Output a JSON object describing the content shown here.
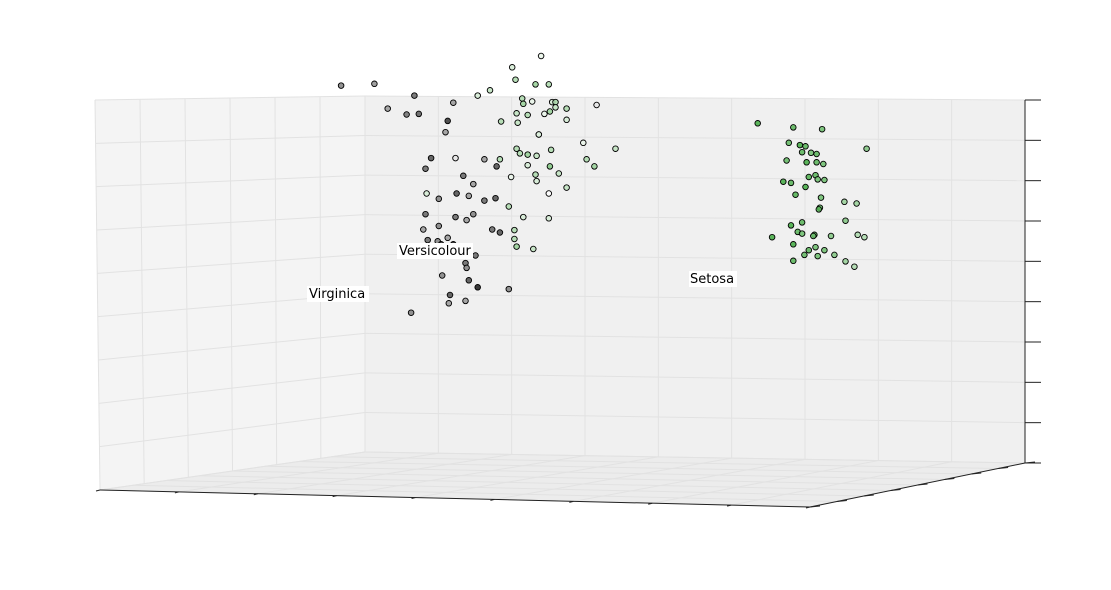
{
  "chart_data": {
    "type": "scatter",
    "projection": "3d",
    "title": "",
    "xlabel": "",
    "ylabel": "",
    "zlabel": "",
    "tick_labels_shown": false,
    "grid": true,
    "pane_color": "#f2f2f2",
    "annotations": [
      {
        "text": "Setosa"
      },
      {
        "text": "Versicolour"
      },
      {
        "text": "Virginica"
      }
    ],
    "point_color_map": {
      "low": "#000000",
      "mid": "#ffffff",
      "high": "#2ca02c"
    },
    "point_edge_color": "#000000",
    "points_note": "Values are read off the projected view; axes carry no labels, so values are normalized 0-1 screen-space readings (u = horizontal, v = vertical) with color level c.",
    "series": [
      {
        "points": [
          {
            "u": 0.307,
            "v": 0.855,
            "c": 0.25
          },
          {
            "u": 0.337,
            "v": 0.858,
            "c": 0.28
          },
          {
            "u": 0.373,
            "v": 0.838,
            "c": 0.2
          },
          {
            "u": 0.349,
            "v": 0.816,
            "c": 0.3
          },
          {
            "u": 0.366,
            "v": 0.806,
            "c": 0.22
          },
          {
            "u": 0.377,
            "v": 0.807,
            "c": 0.18
          },
          {
            "u": 0.408,
            "v": 0.826,
            "c": 0.3
          },
          {
            "u": 0.403,
            "v": 0.795,
            "c": 0.1
          },
          {
            "u": 0.401,
            "v": 0.776,
            "c": 0.3
          },
          {
            "u": 0.388,
            "v": 0.732,
            "c": 0.15
          },
          {
            "u": 0.41,
            "v": 0.732,
            "c": 0.45
          },
          {
            "u": 0.383,
            "v": 0.714,
            "c": 0.2
          },
          {
            "u": 0.436,
            "v": 0.73,
            "c": 0.3
          },
          {
            "u": 0.447,
            "v": 0.718,
            "c": 0.15
          },
          {
            "u": 0.417,
            "v": 0.702,
            "c": 0.2
          },
          {
            "u": 0.426,
            "v": 0.688,
            "c": 0.3
          },
          {
            "u": 0.384,
            "v": 0.672,
            "c": 0.6
          },
          {
            "u": 0.395,
            "v": 0.663,
            "c": 0.25
          },
          {
            "u": 0.411,
            "v": 0.672,
            "c": 0.15
          },
          {
            "u": 0.422,
            "v": 0.668,
            "c": 0.3
          },
          {
            "u": 0.436,
            "v": 0.66,
            "c": 0.2
          },
          {
            "u": 0.446,
            "v": 0.664,
            "c": 0.15
          },
          {
            "u": 0.383,
            "v": 0.637,
            "c": 0.2
          },
          {
            "u": 0.41,
            "v": 0.632,
            "c": 0.2
          },
          {
            "u": 0.42,
            "v": 0.627,
            "c": 0.3
          },
          {
            "u": 0.426,
            "v": 0.637,
            "c": 0.25
          },
          {
            "u": 0.395,
            "v": 0.617,
            "c": 0.25
          },
          {
            "u": 0.381,
            "v": 0.611,
            "c": 0.3
          },
          {
            "u": 0.443,
            "v": 0.611,
            "c": 0.2
          },
          {
            "u": 0.45,
            "v": 0.606,
            "c": 0.15
          },
          {
            "u": 0.403,
            "v": 0.597,
            "c": 0.3
          },
          {
            "u": 0.385,
            "v": 0.593,
            "c": 0.2
          },
          {
            "u": 0.394,
            "v": 0.591,
            "c": 0.25
          },
          {
            "u": 0.408,
            "v": 0.586,
            "c": 0.05
          },
          {
            "u": 0.397,
            "v": 0.586,
            "c": 0.1
          },
          {
            "u": 0.428,
            "v": 0.567,
            "c": 0.2
          },
          {
            "u": 0.393,
            "v": 0.567,
            "c": 0.3
          },
          {
            "u": 0.419,
            "v": 0.554,
            "c": 0.2
          },
          {
            "u": 0.42,
            "v": 0.546,
            "c": 0.25
          },
          {
            "u": 0.422,
            "v": 0.525,
            "c": 0.15
          },
          {
            "u": 0.43,
            "v": 0.513,
            "c": 0.05
          },
          {
            "u": 0.398,
            "v": 0.533,
            "c": 0.25
          },
          {
            "u": 0.419,
            "v": 0.49,
            "c": 0.3
          },
          {
            "u": 0.37,
            "v": 0.47,
            "c": 0.25
          },
          {
            "u": 0.405,
            "v": 0.5,
            "c": 0.15
          },
          {
            "u": 0.458,
            "v": 0.51,
            "c": 0.25
          },
          {
            "u": 0.404,
            "v": 0.486,
            "c": 0.3
          }
        ]
      },
      {
        "points": [
          {
            "u": 0.487,
            "v": 0.905,
            "c": 0.55
          },
          {
            "u": 0.461,
            "v": 0.886,
            "c": 0.6
          },
          {
            "u": 0.464,
            "v": 0.865,
            "c": 0.7
          },
          {
            "u": 0.441,
            "v": 0.847,
            "c": 0.65
          },
          {
            "u": 0.482,
            "v": 0.857,
            "c": 0.75
          },
          {
            "u": 0.494,
            "v": 0.857,
            "c": 0.7
          },
          {
            "u": 0.43,
            "v": 0.838,
            "c": 0.6
          },
          {
            "u": 0.47,
            "v": 0.833,
            "c": 0.7
          },
          {
            "u": 0.471,
            "v": 0.824,
            "c": 0.75
          },
          {
            "u": 0.479,
            "v": 0.828,
            "c": 0.55
          },
          {
            "u": 0.497,
            "v": 0.827,
            "c": 0.6
          },
          {
            "u": 0.5,
            "v": 0.827,
            "c": 0.7
          },
          {
            "u": 0.5,
            "v": 0.818,
            "c": 0.65
          },
          {
            "u": 0.51,
            "v": 0.816,
            "c": 0.7
          },
          {
            "u": 0.495,
            "v": 0.811,
            "c": 0.75
          },
          {
            "u": 0.49,
            "v": 0.807,
            "c": 0.55
          },
          {
            "u": 0.537,
            "v": 0.822,
            "c": 0.45
          },
          {
            "u": 0.465,
            "v": 0.808,
            "c": 0.65
          },
          {
            "u": 0.475,
            "v": 0.805,
            "c": 0.7
          },
          {
            "u": 0.51,
            "v": 0.797,
            "c": 0.6
          },
          {
            "u": 0.451,
            "v": 0.794,
            "c": 0.7
          },
          {
            "u": 0.466,
            "v": 0.792,
            "c": 0.65
          },
          {
            "u": 0.485,
            "v": 0.772,
            "c": 0.8
          },
          {
            "u": 0.485,
            "v": 0.772,
            "c": 0.55
          },
          {
            "u": 0.525,
            "v": 0.758,
            "c": 0.55
          },
          {
            "u": 0.554,
            "v": 0.748,
            "c": 0.65
          },
          {
            "u": 0.465,
            "v": 0.748,
            "c": 0.7
          },
          {
            "u": 0.496,
            "v": 0.746,
            "c": 0.7
          },
          {
            "u": 0.475,
            "v": 0.738,
            "c": 0.75
          },
          {
            "u": 0.468,
            "v": 0.74,
            "c": 0.7
          },
          {
            "u": 0.483,
            "v": 0.736,
            "c": 0.65
          },
          {
            "u": 0.528,
            "v": 0.73,
            "c": 0.7
          },
          {
            "u": 0.535,
            "v": 0.718,
            "c": 0.75
          },
          {
            "u": 0.475,
            "v": 0.72,
            "c": 0.6
          },
          {
            "u": 0.495,
            "v": 0.718,
            "c": 0.8
          },
          {
            "u": 0.503,
            "v": 0.706,
            "c": 0.65
          },
          {
            "u": 0.482,
            "v": 0.704,
            "c": 0.7
          },
          {
            "u": 0.45,
            "v": 0.73,
            "c": 0.7
          },
          {
            "u": 0.46,
            "v": 0.7,
            "c": 0.55
          },
          {
            "u": 0.483,
            "v": 0.693,
            "c": 0.6
          },
          {
            "u": 0.51,
            "v": 0.682,
            "c": 0.65
          },
          {
            "u": 0.494,
            "v": 0.672,
            "c": 0.5
          },
          {
            "u": 0.471,
            "v": 0.632,
            "c": 0.6
          },
          {
            "u": 0.494,
            "v": 0.63,
            "c": 0.6
          },
          {
            "u": 0.458,
            "v": 0.65,
            "c": 0.7
          },
          {
            "u": 0.463,
            "v": 0.61,
            "c": 0.7
          },
          {
            "u": 0.465,
            "v": 0.582,
            "c": 0.75
          },
          {
            "u": 0.48,
            "v": 0.578,
            "c": 0.65
          },
          {
            "u": 0.463,
            "v": 0.595,
            "c": 0.7
          }
        ]
      },
      {
        "points": [
          {
            "u": 0.682,
            "v": 0.791,
            "c": 0.95
          },
          {
            "u": 0.714,
            "v": 0.784,
            "c": 0.9
          },
          {
            "u": 0.74,
            "v": 0.781,
            "c": 0.85
          },
          {
            "u": 0.71,
            "v": 0.758,
            "c": 0.88
          },
          {
            "u": 0.72,
            "v": 0.754,
            "c": 0.95
          },
          {
            "u": 0.725,
            "v": 0.752,
            "c": 0.9
          },
          {
            "u": 0.78,
            "v": 0.748,
            "c": 0.8
          },
          {
            "u": 0.73,
            "v": 0.741,
            "c": 0.85
          },
          {
            "u": 0.735,
            "v": 0.739,
            "c": 0.9
          },
          {
            "u": 0.722,
            "v": 0.742,
            "c": 0.9
          },
          {
            "u": 0.708,
            "v": 0.728,
            "c": 0.88
          },
          {
            "u": 0.726,
            "v": 0.725,
            "c": 0.95
          },
          {
            "u": 0.735,
            "v": 0.725,
            "c": 0.9
          },
          {
            "u": 0.741,
            "v": 0.722,
            "c": 0.85
          },
          {
            "u": 0.734,
            "v": 0.703,
            "c": 0.9
          },
          {
            "u": 0.728,
            "v": 0.7,
            "c": 0.92
          },
          {
            "u": 0.705,
            "v": 0.692,
            "c": 0.95
          },
          {
            "u": 0.712,
            "v": 0.69,
            "c": 0.9
          },
          {
            "u": 0.736,
            "v": 0.696,
            "c": 0.85
          },
          {
            "u": 0.742,
            "v": 0.695,
            "c": 0.85
          },
          {
            "u": 0.725,
            "v": 0.683,
            "c": 0.95
          },
          {
            "u": 0.716,
            "v": 0.67,
            "c": 0.92
          },
          {
            "u": 0.739,
            "v": 0.665,
            "c": 0.85
          },
          {
            "u": 0.76,
            "v": 0.658,
            "c": 0.75
          },
          {
            "u": 0.771,
            "v": 0.655,
            "c": 0.75
          },
          {
            "u": 0.738,
            "v": 0.648,
            "c": 0.88
          },
          {
            "u": 0.737,
            "v": 0.645,
            "c": 0.9
          },
          {
            "u": 0.761,
            "v": 0.626,
            "c": 0.8
          },
          {
            "u": 0.722,
            "v": 0.623,
            "c": 0.9
          },
          {
            "u": 0.712,
            "v": 0.618,
            "c": 0.95
          },
          {
            "u": 0.718,
            "v": 0.607,
            "c": 0.9
          },
          {
            "u": 0.722,
            "v": 0.604,
            "c": 0.85
          },
          {
            "u": 0.733,
            "v": 0.602,
            "c": 0.9
          },
          {
            "u": 0.732,
            "v": 0.6,
            "c": 0.85
          },
          {
            "u": 0.695,
            "v": 0.598,
            "c": 0.95
          },
          {
            "u": 0.714,
            "v": 0.586,
            "c": 0.95
          },
          {
            "u": 0.728,
            "v": 0.576,
            "c": 0.9
          },
          {
            "u": 0.734,
            "v": 0.581,
            "c": 0.85
          },
          {
            "u": 0.742,
            "v": 0.576,
            "c": 0.85
          },
          {
            "u": 0.761,
            "v": 0.557,
            "c": 0.75
          },
          {
            "u": 0.769,
            "v": 0.548,
            "c": 0.7
          },
          {
            "u": 0.751,
            "v": 0.568,
            "c": 0.8
          },
          {
            "u": 0.714,
            "v": 0.558,
            "c": 0.9
          },
          {
            "u": 0.724,
            "v": 0.568,
            "c": 0.88
          },
          {
            "u": 0.736,
            "v": 0.566,
            "c": 0.85
          },
          {
            "u": 0.772,
            "v": 0.602,
            "c": 0.7
          },
          {
            "u": 0.778,
            "v": 0.598,
            "c": 0.7
          },
          {
            "u": 0.748,
            "v": 0.6,
            "c": 0.8
          }
        ]
      }
    ]
  }
}
